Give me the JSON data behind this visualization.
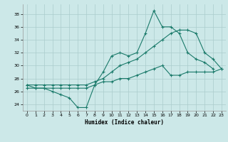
{
  "title": "",
  "xlabel": "Humidex (Indice chaleur)",
  "bg_color": "#cce8e8",
  "grid_color": "#aacccc",
  "line_color": "#1a7a6a",
  "x_ticks": [
    0,
    1,
    2,
    3,
    4,
    5,
    6,
    7,
    8,
    9,
    10,
    11,
    12,
    13,
    14,
    15,
    16,
    17,
    18,
    19,
    20,
    21,
    22,
    23
  ],
  "xlim": [
    -0.5,
    23.5
  ],
  "ylim": [
    23.0,
    39.5
  ],
  "y_ticks": [
    24,
    26,
    28,
    30,
    32,
    34,
    36,
    38
  ],
  "line1_x": [
    0,
    1,
    2,
    3,
    4,
    5,
    6,
    7,
    8,
    9,
    10,
    11,
    12,
    13,
    14,
    15,
    16,
    17,
    18,
    19,
    20,
    21,
    22
  ],
  "line1_y": [
    27.0,
    26.5,
    26.5,
    26.0,
    25.5,
    25.0,
    23.5,
    23.5,
    27.0,
    29.0,
    31.5,
    32.0,
    31.5,
    32.0,
    35.0,
    38.5,
    36.0,
    36.0,
    35.0,
    32.0,
    31.0,
    30.5,
    29.5
  ],
  "line2_x": [
    0,
    1,
    2,
    3,
    4,
    5,
    6,
    7,
    8,
    9,
    10,
    11,
    12,
    13,
    14,
    15,
    16,
    17,
    18,
    19,
    20,
    21,
    22,
    23
  ],
  "line2_y": [
    27.0,
    27.0,
    27.0,
    27.0,
    27.0,
    27.0,
    27.0,
    27.0,
    27.5,
    28.0,
    29.0,
    30.0,
    30.5,
    31.0,
    32.0,
    33.0,
    34.0,
    35.0,
    35.5,
    35.5,
    35.0,
    32.0,
    31.0,
    29.5
  ],
  "line3_x": [
    0,
    1,
    2,
    3,
    4,
    5,
    6,
    7,
    8,
    9,
    10,
    11,
    12,
    13,
    14,
    15,
    16,
    17,
    18,
    19,
    20,
    21,
    22,
    23
  ],
  "line3_y": [
    26.5,
    26.5,
    26.5,
    26.5,
    26.5,
    26.5,
    26.5,
    26.5,
    27.0,
    27.5,
    27.5,
    28.0,
    28.0,
    28.5,
    29.0,
    29.5,
    30.0,
    28.5,
    28.5,
    29.0,
    29.0,
    29.0,
    29.0,
    29.5
  ]
}
